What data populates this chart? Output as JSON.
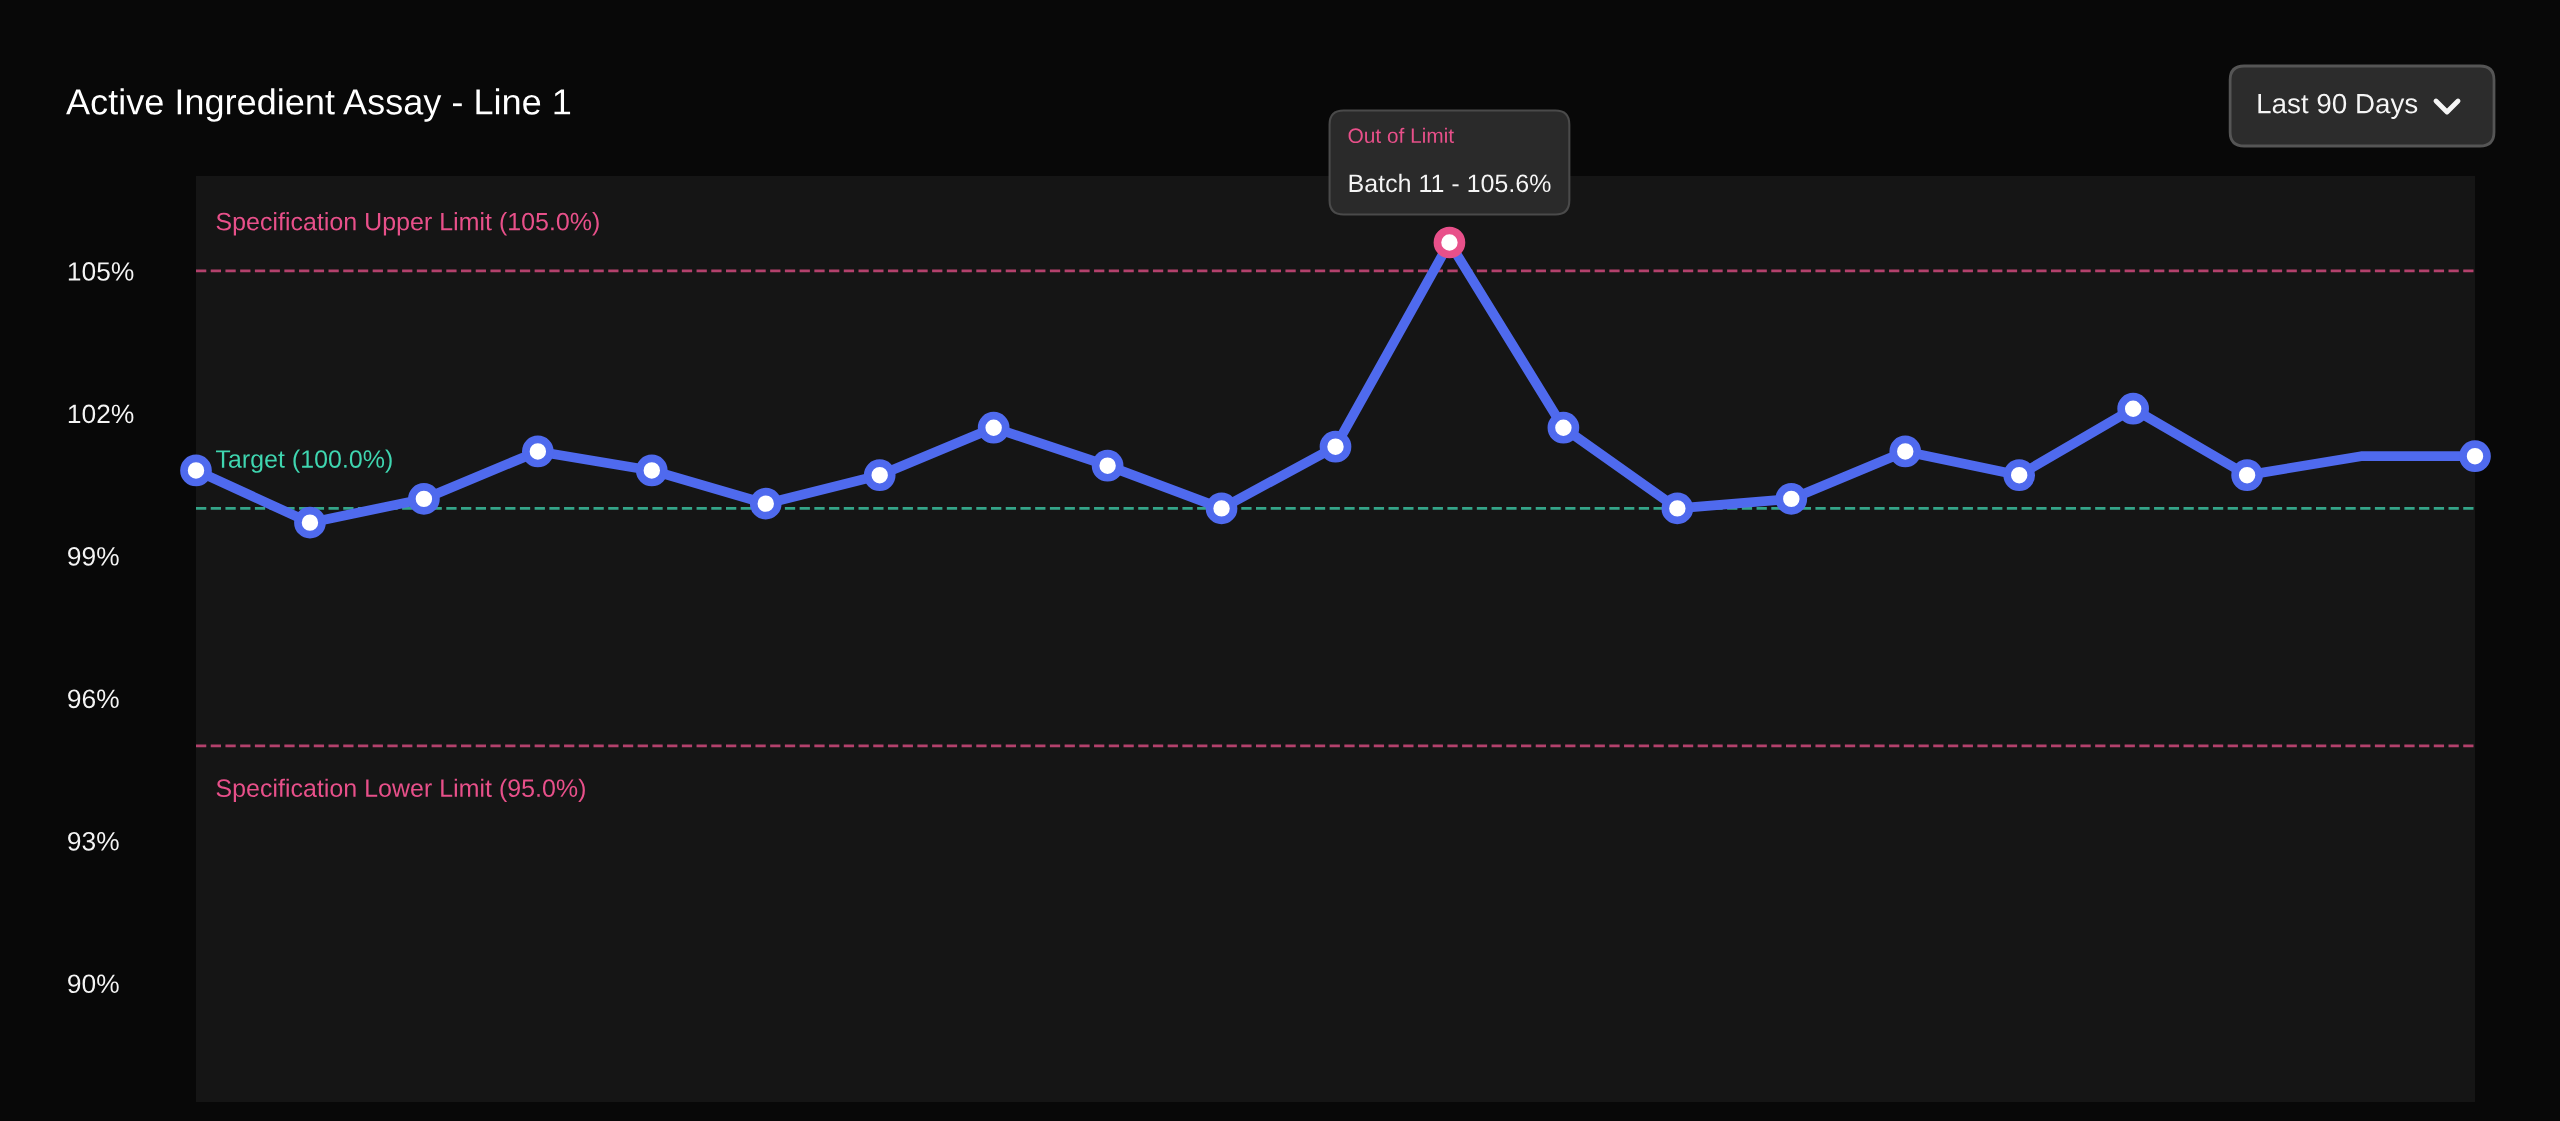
{
  "chart_data": {
    "type": "line",
    "title": "Active Ingredient Assay - Line 1",
    "categories": [
      null,
      null,
      null,
      null,
      null,
      null,
      null,
      null,
      null,
      null,
      null,
      null,
      null,
      null,
      null,
      null,
      null,
      null,
      null,
      null,
      null
    ],
    "series": [
      {
        "color": "#4f6aee",
        "colors": [
          "#4f6aee",
          "#4f6aee",
          "#4f6aee",
          "#4f6aee",
          "#4f6aee",
          "#4f6aee",
          "#4f6aee",
          "#4f6aee",
          "#4f6aee",
          "#4f6aee",
          "#4f6aee",
          "#e8508a",
          "#4f6aee",
          "#4f6aee",
          "#4f6aee",
          "#4f6aee",
          "#4f6aee",
          "#4f6aee",
          "#4f6aee",
          null,
          "#4f6aee"
        ],
        "values": [
          100.8,
          99.7,
          100.2,
          101.2,
          100.8,
          100.1,
          100.7,
          101.7,
          100.9,
          100.0,
          101.3,
          105.6,
          101.7,
          100.0,
          100.2,
          101.2,
          100.7,
          102.1,
          100.7,
          101.1,
          101.1
        ]
      }
    ],
    "ylim": [
      87.5,
      107
    ],
    "yticks": [
      {
        "value": 90,
        "label": "90%"
      },
      {
        "value": 93,
        "label": "93%"
      },
      {
        "value": 96,
        "label": "96%"
      },
      {
        "value": 99,
        "label": "99%"
      },
      {
        "value": 102,
        "label": "102%"
      },
      {
        "value": 105,
        "label": "105%"
      }
    ],
    "tick_labels": "y",
    "marker": "circle",
    "line_style": "solid",
    "ref_lines": [
      {
        "axis": "y",
        "value": 105,
        "label": "Specification Upper Limit (105.0%)",
        "color": "#e8508a",
        "line_style": "dashed"
      },
      {
        "axis": "y",
        "value": 100,
        "label": "Target (100.0%)",
        "color": "#3fd6b0",
        "line_style": "dashed"
      },
      {
        "axis": "y",
        "value": 95,
        "label": "Specification Lower Limit (95.0%)",
        "color": "#e8508a",
        "line_style": "dashed"
      }
    ],
    "annotations": [
      "Last 90 Days",
      "Out of Limit",
      "Batch 11 - 105.6%"
    ]
  }
}
